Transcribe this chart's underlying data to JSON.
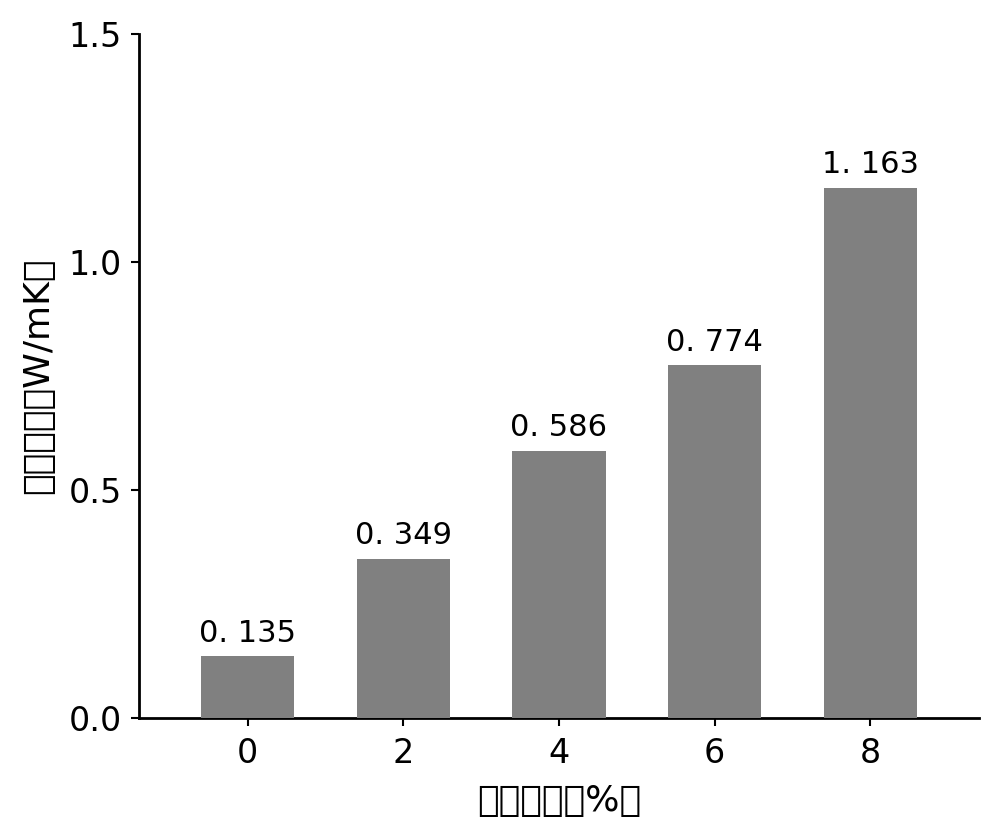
{
  "categories": [
    0,
    2,
    4,
    6,
    8
  ],
  "values": [
    0.135,
    0.349,
    0.586,
    0.774,
    1.163
  ],
  "labels": [
    "0. 135",
    "0. 349",
    "0. 586",
    "0. 774",
    "1. 163"
  ],
  "bar_color": "#808080",
  "bar_width": 1.2,
  "xlim": [
    -1.4,
    9.4
  ],
  "ylim": [
    0.0,
    1.5
  ],
  "yticks": [
    0.0,
    0.5,
    1.0,
    1.5
  ],
  "xticks": [
    0,
    2,
    4,
    6,
    8
  ],
  "xlabel": "质量分数（%）",
  "ylabel": "导热系数（W/mK）",
  "xlabel_fontsize": 26,
  "ylabel_fontsize": 26,
  "tick_fontsize": 24,
  "label_fontsize": 22,
  "background_color": "#ffffff",
  "spine_linewidth": 2.0
}
